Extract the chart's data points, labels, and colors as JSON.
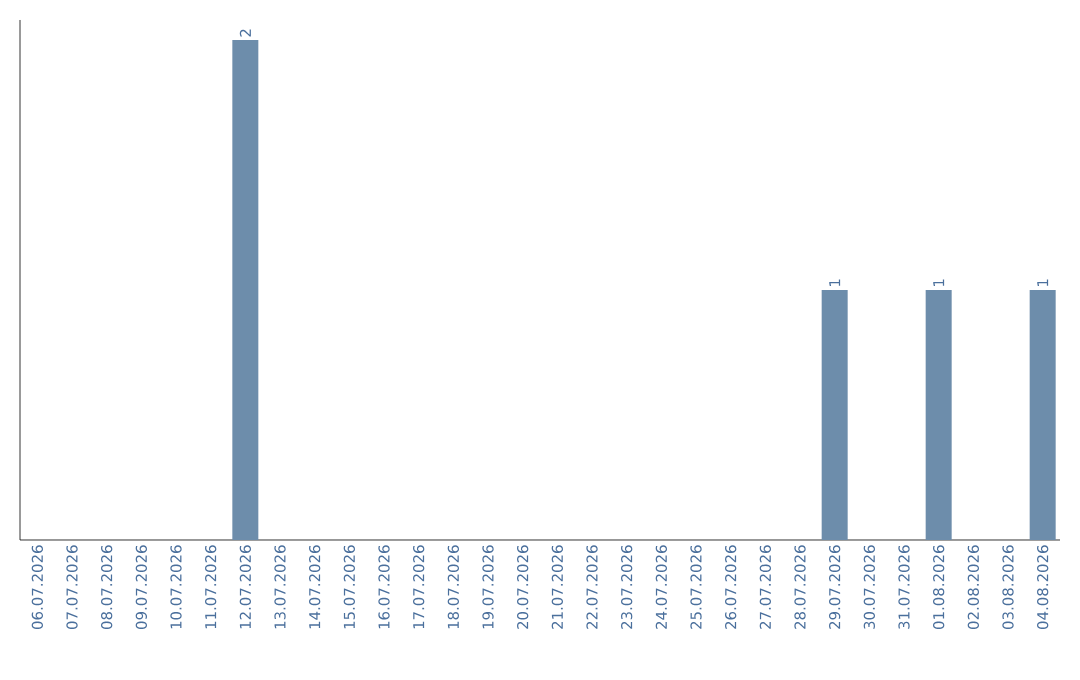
{
  "chart_data": {
    "type": "bar",
    "categories": [
      "06.07.2026",
      "07.07.2026",
      "08.07.2026",
      "09.07.2026",
      "10.07.2026",
      "11.07.2026",
      "12.07.2026",
      "13.07.2026",
      "14.07.2026",
      "15.07.2026",
      "16.07.2026",
      "17.07.2026",
      "18.07.2026",
      "19.07.2026",
      "20.07.2026",
      "21.07.2026",
      "22.07.2026",
      "23.07.2026",
      "24.07.2026",
      "25.07.2026",
      "26.07.2026",
      "27.07.2026",
      "28.07.2026",
      "29.07.2026",
      "30.07.2026",
      "31.07.2026",
      "01.08.2026",
      "02.08.2026",
      "03.08.2026",
      "04.08.2026"
    ],
    "values": [
      0,
      0,
      0,
      0,
      0,
      0,
      2,
      0,
      0,
      0,
      0,
      0,
      0,
      0,
      0,
      0,
      0,
      0,
      0,
      0,
      0,
      0,
      0,
      1,
      0,
      0,
      1,
      0,
      0,
      1
    ],
    "value_labels": [
      null,
      null,
      null,
      null,
      null,
      null,
      "2",
      null,
      null,
      null,
      null,
      null,
      null,
      null,
      null,
      null,
      null,
      null,
      null,
      null,
      null,
      null,
      null,
      "1",
      null,
      null,
      "1",
      null,
      null,
      "1"
    ],
    "color": "#6d8dab",
    "tick_labels": "x",
    "grid": false
  }
}
